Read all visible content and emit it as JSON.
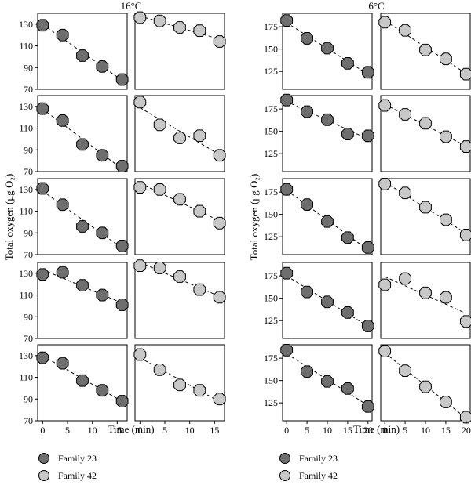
{
  "figure": {
    "y_label": "Total oxygen (μg O₂)",
    "x_label": "Time (min)"
  },
  "legend": [
    {
      "name": "Family 23",
      "color": "#6e6e6e"
    },
    {
      "name": "Family 42",
      "color": "#c8c8c8"
    }
  ],
  "chart_data": [
    {
      "type": "scatter",
      "title": "16°C",
      "xlabel": "Time (min)",
      "ylabel": "Total oxygen (μg O₂)",
      "xlim": [
        -1,
        17
      ],
      "ylim": [
        70,
        140
      ],
      "xticks": [
        0,
        5,
        10,
        15
      ],
      "xtick_labels": [
        "0",
        "5",
        "10",
        "15"
      ],
      "yticks": [
        70,
        90,
        110,
        130
      ],
      "trendline": "dashed",
      "x": [
        0,
        4,
        8,
        12,
        16
      ],
      "series": [
        {
          "name": "Family 23",
          "rows": [
            [
              129,
              120,
              101,
              91,
              79
            ],
            [
              128,
              117,
              95,
              85,
              75
            ],
            [
              131,
              116,
              96,
              90,
              78
            ],
            [
              129,
              131,
              119,
              110,
              101
            ],
            [
              128,
              123,
              107,
              98,
              88
            ]
          ]
        },
        {
          "name": "Family 42",
          "rows": [
            [
              136,
              133,
              127,
              124,
              114
            ],
            [
              134,
              113,
              101,
              103,
              85
            ],
            [
              132,
              130,
              121,
              110,
              99
            ],
            [
              137,
              135,
              127,
              115,
              108
            ],
            [
              131,
              117,
              103,
              98,
              90
            ]
          ]
        }
      ]
    },
    {
      "type": "scatter",
      "title": "6°C",
      "xlabel": "Time (min)",
      "ylabel": "Total oxygen (μg O₂)",
      "xlim": [
        -1,
        21
      ],
      "ylim": [
        105,
        190
      ],
      "xticks": [
        0,
        5,
        10,
        15,
        20
      ],
      "xtick_labels": [
        "0",
        "5",
        "10",
        "15",
        "20"
      ],
      "yticks": [
        125,
        150,
        175
      ],
      "trendline": "dashed",
      "x": [
        0,
        5,
        10,
        15,
        20
      ],
      "series": [
        {
          "name": "Family 23",
          "rows": [
            [
              182,
              162,
              151,
              134,
              124
            ],
            [
              185,
              172,
              163,
              147,
              145
            ],
            [
              178,
              161,
              142,
              124,
              113
            ],
            [
              178,
              157,
              146,
              134,
              119
            ],
            [
              184,
              160,
              149,
              141,
              121
            ]
          ]
        },
        {
          "name": "Family 42",
          "rows": [
            [
              180,
              171,
              149,
              139,
              122
            ],
            [
              179,
              169,
              159,
              144,
              133
            ],
            [
              184,
              174,
              158,
              144,
              127
            ],
            [
              165,
              172,
              156,
              151,
              124
            ],
            [
              183,
              161,
              143,
              126,
              109
            ]
          ]
        }
      ]
    }
  ]
}
